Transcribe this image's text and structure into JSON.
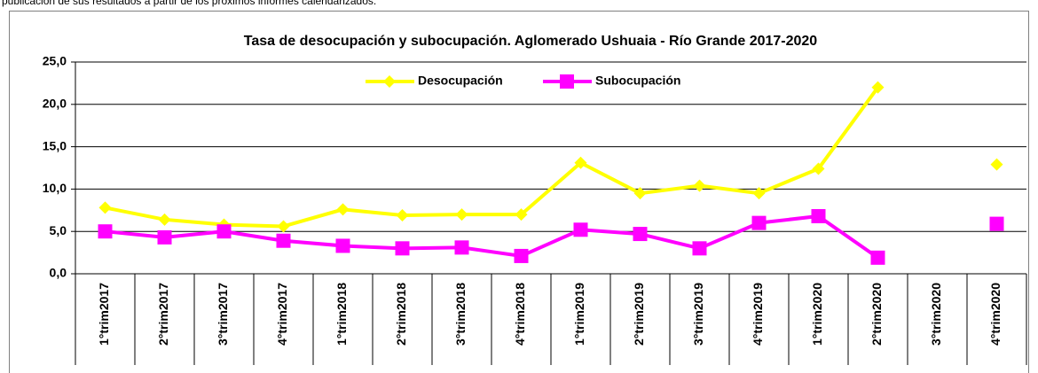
{
  "header_text": "publicación de sus resultados a partir de los próximos informes calendarizados.",
  "chart_data": {
    "type": "line",
    "title": "Tasa de desocupación y subocupación. Aglomerado Ushuaia - Río Grande 2017-2020",
    "categories": [
      "1°trim2017",
      "2°trim2017",
      "3°trim2017",
      "4°trim2017",
      "1°trim2018",
      "2°trim2018",
      "3°trim2018",
      "4°trim2018",
      "1°trim2019",
      "2°trim2019",
      "3°trim2019",
      "4°trim2019",
      "1°trim2020",
      "2°trim2020",
      "3°trim2020",
      "4°trim2020"
    ],
    "series": [
      {
        "name": "Desocupación",
        "color": "#ffff00",
        "marker": "diamond",
        "values": [
          7.8,
          6.4,
          5.8,
          5.6,
          7.6,
          6.9,
          7.0,
          7.0,
          13.1,
          9.5,
          10.4,
          9.5,
          12.4,
          22.0,
          null,
          12.9
        ]
      },
      {
        "name": "Subocupación",
        "color": "#ff00ff",
        "marker": "square",
        "values": [
          5.0,
          4.3,
          5.0,
          3.9,
          3.3,
          3.0,
          3.1,
          2.1,
          5.2,
          4.7,
          3.0,
          6.0,
          6.8,
          1.9,
          null,
          5.9
        ]
      }
    ],
    "ylim": [
      0,
      25
    ],
    "yticks": [
      {
        "value": 0,
        "label": "0,0"
      },
      {
        "value": 5,
        "label": "5,0"
      },
      {
        "value": 10,
        "label": "10,0"
      },
      {
        "value": 15,
        "label": "15,0"
      },
      {
        "value": 20,
        "label": "20,0"
      },
      {
        "value": 25,
        "label": "25,0"
      }
    ],
    "grid": true,
    "legend": "top"
  }
}
